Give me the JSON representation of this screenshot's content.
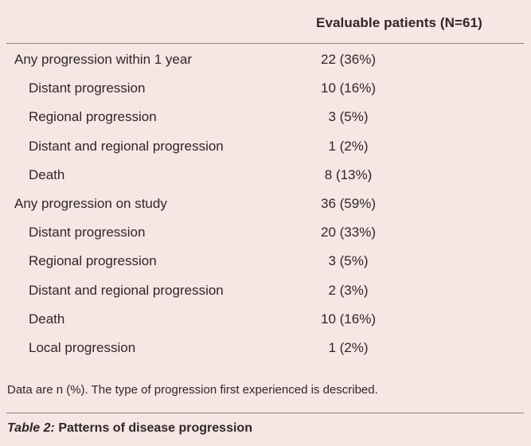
{
  "table": {
    "column_header": "Evaluable patients (N=61)",
    "rows": [
      {
        "label": "Any progression within 1 year",
        "value": "22 (36%)"
      },
      {
        "label": "Distant progression",
        "value": "10 (16%)"
      },
      {
        "label": "Regional progression",
        "value": "3 (5%)"
      },
      {
        "label": "Distant and regional progression",
        "value": "1 (2%)"
      },
      {
        "label": "Death",
        "value": "8 (13%)"
      },
      {
        "label": "Any progression on study",
        "value": "36 (59%)"
      },
      {
        "label": "Distant progression",
        "value": "20 (33%)"
      },
      {
        "label": "Regional progression",
        "value": "3 (5%)"
      },
      {
        "label": "Distant and regional progression",
        "value": "2 (3%)"
      },
      {
        "label": "Death",
        "value": "10 (16%)"
      },
      {
        "label": "Local progression",
        "value": "1 (2%)"
      }
    ]
  },
  "footnote": "Data are n (%). The type of progression first experienced is described.",
  "caption": {
    "number": "Table 2:",
    "title": "Patterns of disease progression"
  },
  "colors": {
    "background": "#f6e6e4",
    "text": "#2f2728",
    "rule": "#8e8282"
  }
}
